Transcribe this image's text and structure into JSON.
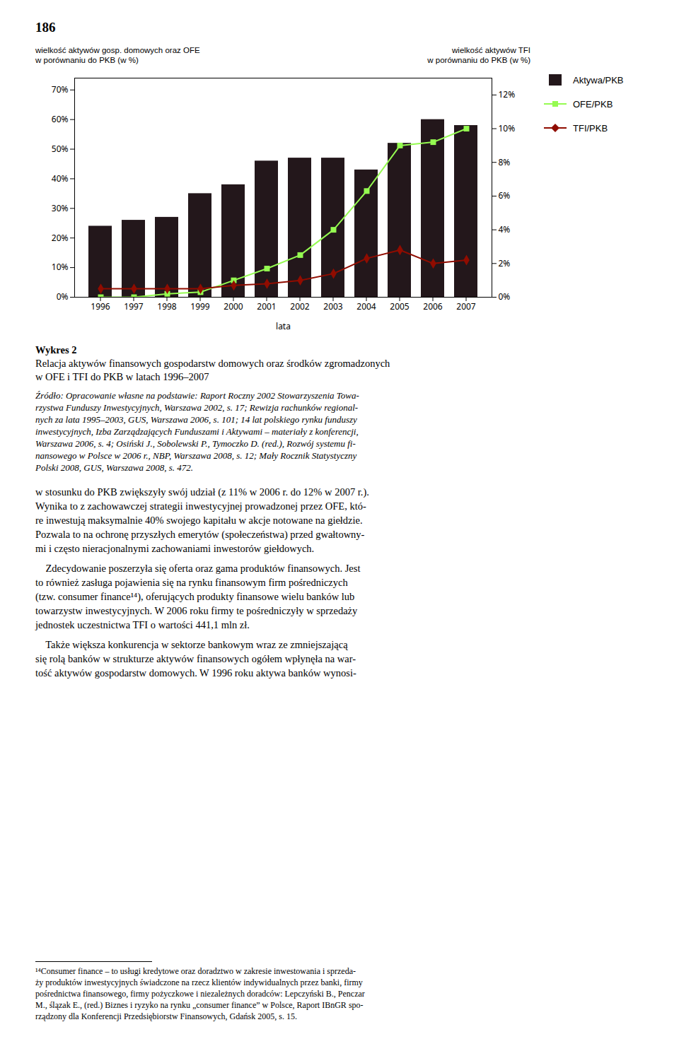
{
  "chart_data": {
    "type": "bar",
    "title": "Wykres 2",
    "subtitle": "Relacja aktywów finansowych gospodarstw domowych oraz środków zgromadzonych\nw OFE i TFI do PKB w latach 1996–2007",
    "xlabel": "lata",
    "ylabel": "wielkość aktywów gosp. domowych oraz OFE\nw porównaniu do PKB (w %)",
    "y2label": "wielkość aktywów TFI\nw porównaniu do PKB (w %)",
    "categories": [
      1996,
      1997,
      1998,
      1999,
      2000,
      2001,
      2002,
      2003,
      2004,
      2005,
      2006,
      2007
    ],
    "series": [
      {
        "name": "Aktywa/PKB",
        "type": "bar",
        "values": [
          0.24,
          0.26,
          0.27,
          0.35,
          0.38,
          0.46,
          0.47,
          0.47,
          0.43,
          0.52,
          0.6,
          0.58
        ]
      },
      {
        "name": "OFE/PKB",
        "type": "line",
        "axis": "y2",
        "marker": "square",
        "values": [
          0.0,
          0.0,
          0.002,
          0.003,
          0.01,
          0.017,
          0.025,
          0.04,
          0.063,
          0.09,
          0.092,
          0.1
        ]
      },
      {
        "name": "TFI/PKB",
        "type": "line",
        "axis": "y2",
        "marker": "diamond",
        "values": [
          0.005,
          0.005,
          0.005,
          0.005,
          0.007,
          0.008,
          0.01,
          0.014,
          0.023,
          0.028,
          0.02,
          0.022
        ]
      }
    ],
    "ylim": [
      0,
      0.74
    ],
    "yticks": [
      {
        "value": 0.0,
        "label": "0%"
      },
      {
        "value": 0.1,
        "label": "10%"
      },
      {
        "value": 0.2,
        "label": "20%"
      },
      {
        "value": 0.3,
        "label": "30%"
      },
      {
        "value": 0.4,
        "label": "40%"
      },
      {
        "value": 0.5,
        "label": "50%"
      },
      {
        "value": 0.6,
        "label": "60%"
      },
      {
        "value": 0.7,
        "label": "70%"
      }
    ],
    "y2lim": [
      0,
      0.13
    ],
    "y2ticks": [
      {
        "value": 0.0,
        "label": "0%"
      },
      {
        "value": 0.02,
        "label": "2%"
      },
      {
        "value": 0.04,
        "label": "4%"
      },
      {
        "value": 0.06,
        "label": "6%"
      },
      {
        "value": 0.08,
        "label": "8%"
      },
      {
        "value": 0.1,
        "label": "10%"
      },
      {
        "value": 0.12,
        "label": "12%"
      }
    ],
    "grid": false,
    "legend": "right"
  },
  "page": {
    "page_number": "186",
    "source_lines": [
      "Źródło: Opracowanie własne na podstawie: Raport Roczny 2002 Stowarzyszenia Towa-",
      "rzystwa Funduszy Inwestycyjnych, Warszawa 2002, s. 17; Rewizja rachunków regional-",
      "nych za lata 1995–2003, GUS, Warszawa 2006, s. 101; 14 lat polskiego rynku funduszy",
      "inwestycyjnych, Izba Zarządzających Funduszami i Aktywami – materiały z konferencji,",
      "Warszawa 2006, s. 4; Osiński J., Sobolewski P., Tymoczko D. (red.), Rozwój systemu fi-",
      "nansowego w Polsce w 2006 r., NBP, Warszawa 2008, s. 12; Mały Rocznik Statystyczny",
      "Polski 2008, GUS, Warszawa 2008, s. 472."
    ],
    "paragraphs": [
      [
        "w stosunku do PKB zwiększyły swój udział (z 11% w 2006 r. do 12% w 2007 r.).",
        "Wynika to z zachowawczej strategii inwestycyjnej prowadzonej przez OFE, któ-",
        "re inwestują maksymalnie 40% swojego kapitału w akcje notowane na giełdzie.",
        "Pozwala to na ochronę przyszłych emery­tów (społeczeństwa) przed gwałtowny-",
        "mi i często nieracjonalnymi zachowaniami inwestorów giełdowych."
      ],
      [
        "    Zdecydowanie poszerzyła się oferta oraz gama produktów finansowych. Jest",
        "to również zasługa pojawienia się na rynku finansowym firm pośredniczych",
        "(tzw. consumer finance¹⁴), oferujących produkty finansowe wielu banków lub",
        "towarzystw inwestycyjnych. W 2006 roku firmy te pośredniczyły w sprzedaży",
        "jednostek uczestnictwa TFI o wartości 441,1 mln zł."
      ],
      [
        "    Także większa konkurencja w sektorze bankowym wraz ze zmniejszającą",
        "się rolą banków w strukturze aktywów finansowych ogółem wpłynęła na war-",
        "tość aktywów gospodarstw domowych. W 1996 roku aktywa banków wynosi-"
      ]
    ],
    "footnote_lines": [
      "¹⁴Consumer finance – to usługi kredytowe oraz doradztwo w zakresie inwestowania i sprzeda-",
      "ży produktów inwestycyjnych świadczone na rzecz klientów indywidualnych przez banki, firmy",
      "pośrednictwa finansowego, firmy pożyczk­owe i niezależnych doradców: Lepczyński B., Penczar",
      "M., ślązak E., (red.) Biznes i ryzyko na rynku „consumer finance” w Polsce, Raport IBnGR spo-",
      "rządzony dla Konferencji Przedsiębiorstw Finansowych, Gdańsk 2005, s. 15."
    ]
  }
}
